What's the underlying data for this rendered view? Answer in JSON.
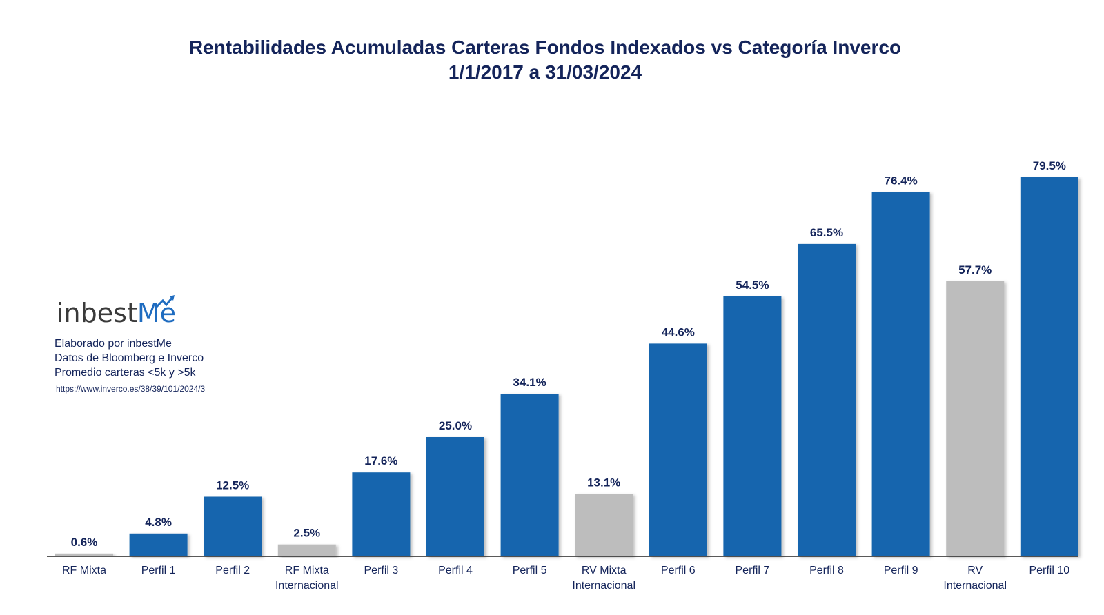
{
  "chart_data": {
    "type": "bar",
    "title": "Rentabilidades Acumuladas Carteras Fondos Indexados vs Categoría Inverco",
    "subtitle": "1/1/2017 a 31/03/2024",
    "categories": [
      [
        "RF Mixta"
      ],
      [
        "Perfil 1"
      ],
      [
        "Perfil 2"
      ],
      [
        "RF Mixta",
        "Internacional"
      ],
      [
        "Perfil 3"
      ],
      [
        "Perfil 4"
      ],
      [
        "Perfil 5"
      ],
      [
        "RV Mixta",
        "Internacional"
      ],
      [
        "Perfil 6"
      ],
      [
        "Perfil 7"
      ],
      [
        "Perfil 8"
      ],
      [
        "Perfil 9"
      ],
      [
        "RV",
        "Internacional"
      ],
      [
        "Perfil 10"
      ]
    ],
    "values": [
      0.6,
      4.8,
      12.5,
      2.5,
      17.6,
      25.0,
      34.1,
      13.1,
      44.6,
      54.5,
      65.5,
      76.4,
      57.7,
      79.5
    ],
    "value_labels": [
      "0.6%",
      "4.8%",
      "12.5%",
      "2.5%",
      "17.6%",
      "25.0%",
      "34.1%",
      "13.1%",
      "44.6%",
      "54.5%",
      "65.5%",
      "76.4%",
      "57.7%",
      "79.5%"
    ],
    "bar_kind": [
      "category",
      "portfolio",
      "portfolio",
      "category",
      "portfolio",
      "portfolio",
      "portfolio",
      "category",
      "portfolio",
      "portfolio",
      "portfolio",
      "portfolio",
      "category",
      "portfolio"
    ],
    "colors": {
      "portfolio": "#1565ae",
      "category": "#bdbdbd"
    },
    "ylim": [
      0,
      79.5
    ],
    "grid": false,
    "legend": "none"
  },
  "branding": {
    "logo_main": "inbest",
    "logo_accent": "Me",
    "notes": [
      "Elaborado por inbestMe",
      "Datos de Bloomberg e Inverco",
      "Promedio carteras <5k y >5k"
    ],
    "url": "https://www.inverco.es/38/39/101/2024/3"
  }
}
